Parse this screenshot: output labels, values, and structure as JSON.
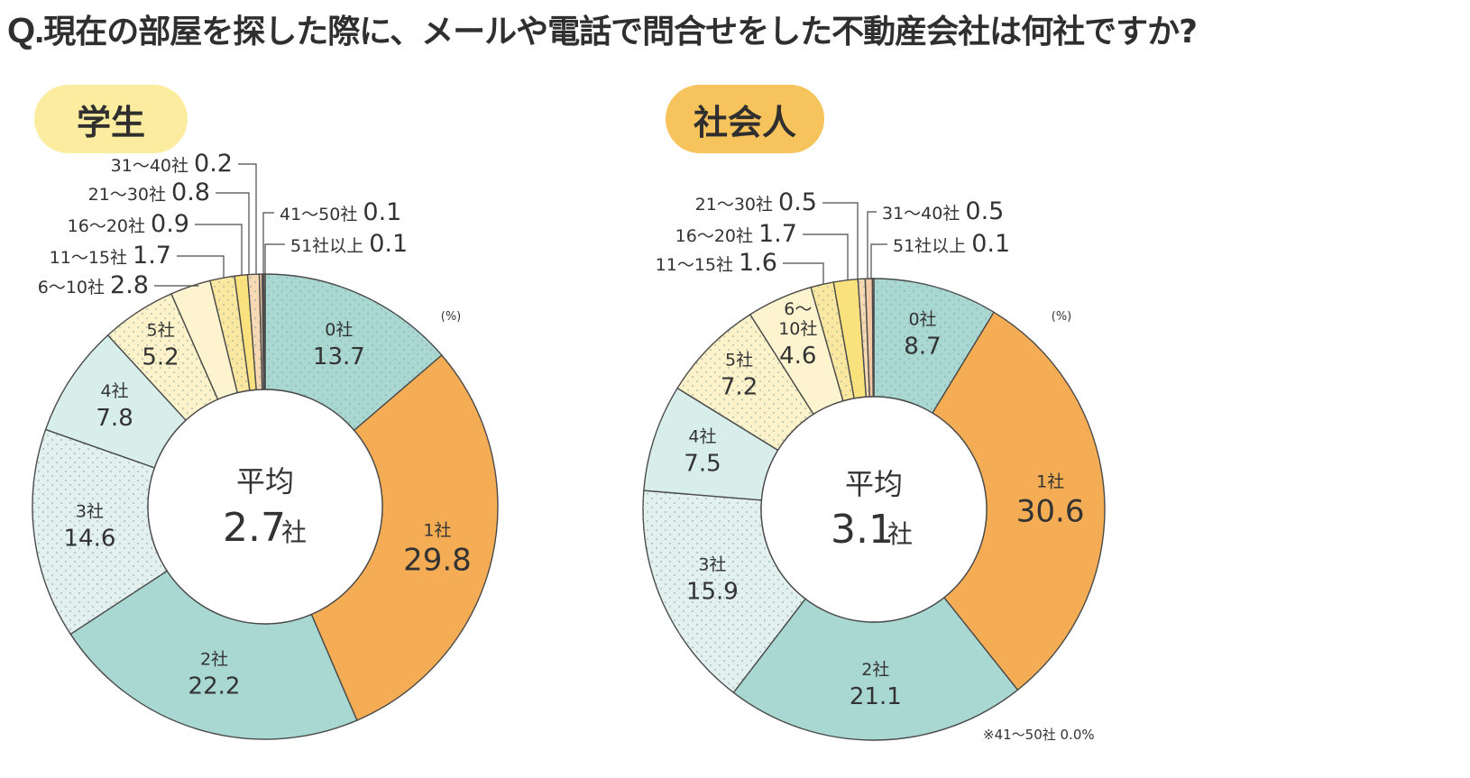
{
  "title": {
    "prefix": "Q.",
    "text": "現在の部屋を探した際に、メールや電話で問合せをした不動産会社は何社ですか?"
  },
  "unit_label": "(%)",
  "center_label": "平均",
  "count_unit": "社",
  "colors": {
    "zero": "#a9d8d2",
    "one": "#f4ad54",
    "two": "#a9d8d2",
    "three": "#e2f0ee",
    "four": "#d8eeeb",
    "five": "#fdf2c9",
    "six_ten": "#fdf4cf",
    "eleven_fifteen": "#fbe8a0",
    "sixteen_twenty": "#f9e27e",
    "twentyone_thirty": "#f7d9b4",
    "thirtyone_forty": "#f4c9a6",
    "fortyone_fifty": "#f2bf9a",
    "fiftyone_plus": "#e8a977"
  },
  "chart_data": [
    {
      "type": "pie",
      "title": "学生",
      "title_color": "#fbec9f",
      "average": {
        "value": "2.7",
        "unit": "社"
      },
      "slices": [
        {
          "name": "0社",
          "value": 13.7,
          "color": "#a9d8d2",
          "dotted": true,
          "placement": "inside"
        },
        {
          "name": "1社",
          "value": 29.8,
          "color": "#f4ad54",
          "dotted": false,
          "placement": "inside",
          "emphasis": true
        },
        {
          "name": "2社",
          "value": 22.2,
          "color": "#a9d8d2",
          "dotted": false,
          "placement": "inside"
        },
        {
          "name": "3社",
          "value": 14.6,
          "color": "#e2f0ee",
          "dotted": true,
          "placement": "inside"
        },
        {
          "name": "4社",
          "value": 7.8,
          "color": "#d8eeeb",
          "dotted": false,
          "placement": "inside"
        },
        {
          "name": "5社",
          "value": 5.2,
          "color": "#fdf2c9",
          "dotted": true,
          "placement": "inside"
        },
        {
          "name": "6〜10社",
          "value": 2.8,
          "color": "#fdf4cf",
          "dotted": false,
          "placement": "callout"
        },
        {
          "name": "11〜15社",
          "value": 1.7,
          "color": "#fbe8a0",
          "dotted": true,
          "placement": "callout"
        },
        {
          "name": "16〜20社",
          "value": 0.9,
          "color": "#f9e27e",
          "dotted": false,
          "placement": "callout"
        },
        {
          "name": "21〜30社",
          "value": 0.8,
          "color": "#f7d9b4",
          "dotted": true,
          "placement": "callout"
        },
        {
          "name": "31〜40社",
          "value": 0.2,
          "color": "#f4c9a6",
          "dotted": false,
          "placement": "callout"
        },
        {
          "name": "41〜50社",
          "value": 0.1,
          "color": "#f2bf9a",
          "dotted": false,
          "placement": "callout"
        },
        {
          "name": "51社以上",
          "value": 0.1,
          "color": "#e8a977",
          "dotted": false,
          "placement": "callout"
        }
      ],
      "footnote": ""
    },
    {
      "type": "pie",
      "title": "社会人",
      "title_color": "#f6c35c",
      "average": {
        "value": "3.1",
        "unit": "社"
      },
      "slices": [
        {
          "name": "0社",
          "value": 8.7,
          "color": "#a9d8d2",
          "dotted": true,
          "placement": "inside"
        },
        {
          "name": "1社",
          "value": 30.6,
          "color": "#f4ad54",
          "dotted": false,
          "placement": "inside",
          "emphasis": true
        },
        {
          "name": "2社",
          "value": 21.1,
          "color": "#a9d8d2",
          "dotted": false,
          "placement": "inside"
        },
        {
          "name": "3社",
          "value": 15.9,
          "color": "#e2f0ee",
          "dotted": true,
          "placement": "inside"
        },
        {
          "name": "4社",
          "value": 7.5,
          "color": "#d8eeeb",
          "dotted": false,
          "placement": "inside"
        },
        {
          "name": "5社",
          "value": 7.2,
          "color": "#fdf2c9",
          "dotted": true,
          "placement": "inside"
        },
        {
          "name": "6〜10社",
          "value": 4.6,
          "color": "#fdf4cf",
          "dotted": false,
          "placement": "inside",
          "label_lines": [
            "6〜",
            "10社"
          ]
        },
        {
          "name": "11〜15社",
          "value": 1.6,
          "color": "#fbe8a0",
          "dotted": true,
          "placement": "callout"
        },
        {
          "name": "16〜20社",
          "value": 1.7,
          "color": "#f9e27e",
          "dotted": false,
          "placement": "callout"
        },
        {
          "name": "21〜30社",
          "value": 0.5,
          "color": "#f7d9b4",
          "dotted": true,
          "placement": "callout"
        },
        {
          "name": "31〜40社",
          "value": 0.5,
          "color": "#f4c9a6",
          "dotted": false,
          "placement": "callout"
        },
        {
          "name": "41〜50社",
          "value": 0.0,
          "color": "#f2bf9a",
          "dotted": false,
          "placement": "footnote"
        },
        {
          "name": "51社以上",
          "value": 0.1,
          "color": "#e8a977",
          "dotted": false,
          "placement": "callout"
        }
      ],
      "footnote": "※41〜50社 0.0%"
    }
  ]
}
